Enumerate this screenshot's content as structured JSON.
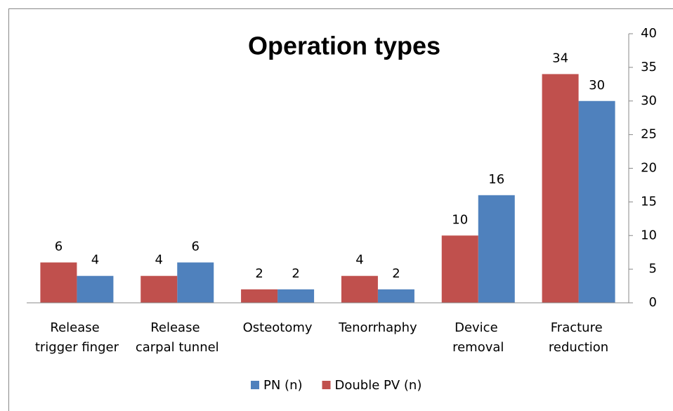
{
  "chart_data": {
    "type": "bar",
    "title": "Operation types",
    "categories": [
      "Release\ntrigger finger",
      "Release\ncarpal tunnel",
      "Osteotomy",
      "Tenorrhaphy",
      "Device\nremoval",
      "Fracture\nreduction"
    ],
    "series": [
      {
        "name": "PN (n)",
        "color": "#4f81bd",
        "values": [
          4,
          6,
          2,
          2,
          16,
          30
        ]
      },
      {
        "name": "Double PV (n)",
        "color": "#c0504d",
        "values": [
          6,
          4,
          2,
          4,
          10,
          34
        ]
      }
    ],
    "ylim": [
      0,
      40
    ],
    "yticks": [
      0,
      5,
      10,
      15,
      20,
      25,
      30,
      35,
      40
    ],
    "yaxis_side": "right",
    "grid": false,
    "legend": "bottom"
  }
}
